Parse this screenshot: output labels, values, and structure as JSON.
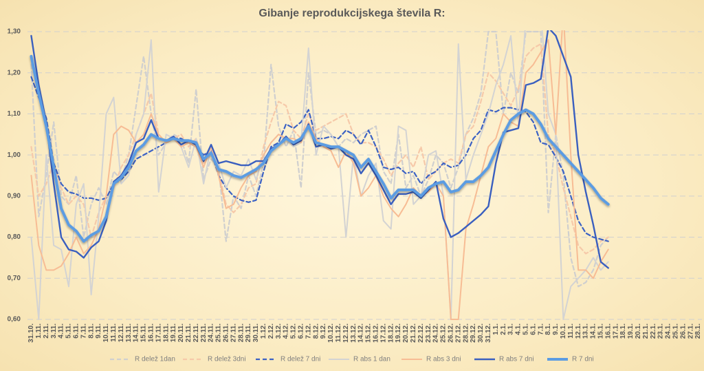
{
  "chart_data": {
    "type": "line",
    "title": "Gibanje reprodukcijskega števila R:",
    "categories": [
      "31.10.",
      "1.11.",
      "2.11.",
      "3.11.",
      "4.11.",
      "5.11.",
      "6.11.",
      "7.11.",
      "8.11.",
      "9.11.",
      "10.11.",
      "11.11.",
      "12.11.",
      "13.11.",
      "14.11.",
      "15.11.",
      "16.11.",
      "17.11.",
      "18.11.",
      "19.11.",
      "20.11.",
      "21.11.",
      "22.11.",
      "23.11.",
      "24.11.",
      "25.11.",
      "26.11.",
      "27.11.",
      "28.11.",
      "29.11.",
      "30.11.",
      "1.12.",
      "2.12.",
      "3.12.",
      "4.12.",
      "5.12.",
      "6.12.",
      "7.12.",
      "8.12.",
      "9.12.",
      "10.12.",
      "11.12.",
      "12.12.",
      "13.12.",
      "14.12.",
      "15.12.",
      "16.12.",
      "17.12.",
      "18.12.",
      "19.12.",
      "20.12.",
      "21.12.",
      "22.12.",
      "23.12.",
      "24.12.",
      "25.12.",
      "26.12.",
      "27.12.",
      "28.12.",
      "29.12.",
      "30.12.",
      "31.12.",
      "1.1.",
      "2.1.",
      "3.1.",
      "4.1.",
      "5.1.",
      "6.1.",
      "7.1.",
      "8.1.",
      "9.1.",
      "10.1.",
      "11.1.",
      "12.1.",
      "13.1.",
      "14.1.",
      "15.1.",
      "16.1.",
      "17.1.",
      "18.1.",
      "19.1.",
      "20.1.",
      "21.1.",
      "22.1.",
      "23.1.",
      "24.1.",
      "25.1.",
      "26.1.",
      "27.1.",
      "28.1."
    ],
    "series": [
      {
        "name": "R delež 1dan",
        "color": "#cfcfcf",
        "style": "dashed",
        "values": [
          1.22,
          0.85,
          0.95,
          1.08,
          0.9,
          0.88,
          0.95,
          0.8,
          0.88,
          0.92,
          0.88,
          0.96,
          0.94,
          1.0,
          1.12,
          1.24,
          1.1,
          1.0,
          1.03,
          1.05,
          1.04,
          0.98,
          1.16,
          0.94,
          0.99,
          0.97,
          0.79,
          0.9,
          0.87,
          0.95,
          0.9,
          0.98,
          1.22,
          1.07,
          1.02,
          1.06,
          0.92,
          1.2,
          1.05,
          1.06,
          1.05,
          1.02,
          1.04,
          1.03,
          1.05,
          1.06,
          1.07,
          0.96,
          0.93,
          1.05,
          0.92,
          0.95,
          0.9,
          0.94,
          1.0,
          0.98,
          0.92,
          0.97,
          1.05,
          1.09,
          1.15,
          1.3,
          1.3,
          1.1,
          1.2,
          1.15,
          1.3,
          1.3,
          1.3,
          0.86,
          1.05,
          0.95,
          0.75,
          0.68,
          0.69,
          0.72,
          0.78,
          0.8,
          null,
          null,
          null,
          null,
          null,
          null,
          null,
          null,
          null,
          null,
          null,
          null
        ]
      },
      {
        "name": "R delež 3dni",
        "color": "#f6c9a9",
        "style": "dashed",
        "values": [
          1.02,
          0.9,
          0.93,
          0.98,
          0.92,
          0.88,
          0.9,
          0.88,
          0.8,
          0.86,
          0.9,
          0.92,
          0.97,
          1.0,
          1.05,
          1.1,
          1.15,
          1.05,
          1.03,
          1.04,
          1.05,
          1.02,
          1.04,
          0.98,
          1.01,
          0.96,
          0.88,
          0.86,
          0.88,
          0.92,
          0.93,
          1.02,
          1.08,
          1.13,
          1.12,
          1.06,
          1.04,
          1.1,
          1.06,
          1.07,
          1.08,
          1.09,
          1.1,
          1.05,
          1.03,
          1.03,
          1.02,
          0.99,
          0.95,
          0.98,
          1.0,
          0.97,
          1.02,
          0.94,
          0.96,
          0.98,
          0.99,
          0.98,
          1.05,
          1.07,
          1.13,
          1.2,
          1.18,
          1.15,
          1.12,
          1.16,
          1.24,
          1.26,
          1.27,
          1.05,
          1.0,
          0.92,
          0.85,
          0.78,
          0.76,
          0.77,
          0.79,
          0.8,
          null,
          null,
          null,
          null,
          null,
          null,
          null,
          null,
          null,
          null,
          null,
          null
        ]
      },
      {
        "name": "R delež 7 dni",
        "color": "#3c62c4",
        "style": "dashed",
        "values": [
          1.19,
          1.14,
          1.09,
          0.98,
          0.93,
          0.91,
          0.905,
          0.895,
          0.895,
          0.89,
          0.895,
          0.93,
          0.94,
          0.96,
          0.99,
          1.0,
          1.01,
          1.02,
          1.03,
          1.04,
          1.04,
          1.03,
          1.02,
          1.0,
          1.01,
          0.95,
          0.92,
          0.9,
          0.89,
          0.885,
          0.89,
          0.96,
          1.02,
          1.03,
          1.075,
          1.065,
          1.08,
          1.11,
          1.04,
          1.04,
          1.045,
          1.04,
          1.06,
          1.05,
          1.025,
          1.06,
          1.02,
          0.97,
          0.965,
          0.97,
          0.955,
          0.96,
          0.93,
          0.95,
          0.96,
          0.98,
          0.97,
          0.975,
          1.0,
          1.04,
          1.06,
          1.11,
          1.105,
          1.115,
          1.115,
          1.11,
          1.105,
          1.08,
          1.03,
          1.025,
          0.995,
          0.96,
          0.9,
          0.84,
          0.81,
          0.8,
          0.795,
          0.79,
          null,
          null,
          null,
          null,
          null,
          null,
          null,
          null,
          null,
          null,
          null,
          null
        ]
      },
      {
        "name": "R abs 1 dan",
        "color": "#d3d3d3",
        "style": "solid",
        "values": [
          0.8,
          0.6,
          1.0,
          0.78,
          0.77,
          0.68,
          0.88,
          0.93,
          0.66,
          0.85,
          1.1,
          1.14,
          0.93,
          0.95,
          1.05,
          1.1,
          1.28,
          0.91,
          1.05,
          1.04,
          1.02,
          0.97,
          1.04,
          0.93,
          1.02,
          0.98,
          0.92,
          0.96,
          0.95,
          0.99,
          0.94,
          1.0,
          1.03,
          1.05,
          1.04,
          1.02,
          1.03,
          1.26,
          1.0,
          1.07,
          1.05,
          1.02,
          0.8,
          1.0,
          0.9,
          0.95,
          0.98,
          0.84,
          0.82,
          1.07,
          1.06,
          0.88,
          0.9,
          1.0,
          1.01,
          0.9,
          0.6,
          1.27,
          0.94,
          1.0,
          1.05,
          1.1,
          1.17,
          1.22,
          1.29,
          1.08,
          1.33,
          1.32,
          1.35,
          1.1,
          1.05,
          0.6,
          0.68,
          0.7,
          0.72,
          0.75,
          0.72,
          0.74,
          null,
          null,
          null,
          null,
          null,
          null,
          null,
          null,
          null,
          null,
          null,
          null
        ]
      },
      {
        "name": "R abs 3 dni",
        "color": "#f7bc94",
        "style": "solid",
        "values": [
          0.95,
          0.78,
          0.72,
          0.72,
          0.73,
          0.76,
          0.8,
          0.76,
          0.78,
          0.82,
          0.9,
          1.05,
          1.07,
          1.06,
          1.03,
          1.05,
          1.1,
          1.05,
          1.03,
          1.04,
          1.02,
          1.03,
          1.02,
          0.97,
          1.02,
          0.95,
          0.87,
          0.88,
          0.92,
          0.95,
          0.96,
          1.0,
          1.03,
          1.05,
          1.04,
          1.04,
          1.03,
          1.08,
          1.04,
          1.02,
          1.01,
          0.97,
          1.01,
          0.98,
          0.9,
          0.92,
          0.95,
          0.9,
          0.87,
          0.85,
          0.88,
          0.92,
          0.9,
          0.91,
          0.93,
          0.9,
          0.6,
          0.6,
          0.82,
          0.88,
          0.95,
          1.02,
          1.04,
          1.1,
          1.08,
          1.07,
          1.2,
          1.22,
          1.25,
          1.28,
          1.05,
          1.35,
          1.0,
          0.72,
          0.72,
          0.7,
          0.74,
          0.77,
          null,
          null,
          null,
          null,
          null,
          null,
          null,
          null,
          null,
          null,
          null,
          null
        ]
      },
      {
        "name": "R abs 7 dni",
        "color": "#3a5fbf",
        "style": "solid",
        "values": [
          1.29,
          1.17,
          1.08,
          0.93,
          0.8,
          0.77,
          0.765,
          0.75,
          0.775,
          0.79,
          0.84,
          0.935,
          0.95,
          0.98,
          1.03,
          1.04,
          1.085,
          1.04,
          1.035,
          1.045,
          1.025,
          1.035,
          1.025,
          0.985,
          1.025,
          0.98,
          0.985,
          0.98,
          0.975,
          0.975,
          0.985,
          0.985,
          1.015,
          1.025,
          1.045,
          1.025,
          1.035,
          1.075,
          1.02,
          1.025,
          1.015,
          1.02,
          1.0,
          0.99,
          0.955,
          0.98,
          0.95,
          0.915,
          0.88,
          0.905,
          0.905,
          0.91,
          0.895,
          0.915,
          0.935,
          0.845,
          0.8,
          0.81,
          0.825,
          0.84,
          0.855,
          0.875,
          0.98,
          1.055,
          1.06,
          1.065,
          1.17,
          1.175,
          1.185,
          1.31,
          1.29,
          1.24,
          1.19,
          1.0,
          0.91,
          0.83,
          0.74,
          0.725,
          null,
          null,
          null,
          null,
          null,
          null,
          null,
          null,
          null,
          null,
          null,
          null
        ]
      },
      {
        "name": "R 7 dni",
        "color": "#5c9ce2",
        "style": "bold",
        "values": [
          1.24,
          1.15,
          1.07,
          0.97,
          0.87,
          0.83,
          0.815,
          0.79,
          0.805,
          0.815,
          0.85,
          0.93,
          0.945,
          0.97,
          1.01,
          1.025,
          1.05,
          1.04,
          1.035,
          1.04,
          1.035,
          1.035,
          1.03,
          0.99,
          1.005,
          0.965,
          0.96,
          0.95,
          0.945,
          0.955,
          0.965,
          0.98,
          1.01,
          1.025,
          1.04,
          1.03,
          1.04,
          1.07,
          1.03,
          1.025,
          1.02,
          1.02,
          1.01,
          1.0,
          0.97,
          0.99,
          0.96,
          0.93,
          0.895,
          0.915,
          0.915,
          0.915,
          0.9,
          0.92,
          0.93,
          0.935,
          0.91,
          0.915,
          0.935,
          0.935,
          0.95,
          0.97,
          1.01,
          1.05,
          1.085,
          1.1,
          1.11,
          1.1,
          1.075,
          1.04,
          1.02,
          1.0,
          0.98,
          0.96,
          0.94,
          0.92,
          0.895,
          0.88,
          null,
          null,
          null,
          null,
          null,
          null,
          null,
          null,
          null,
          null,
          null,
          null
        ]
      }
    ],
    "ylim": [
      0.6,
      1.3
    ],
    "yticks": [
      {
        "value": 0.6,
        "label": "0,60"
      },
      {
        "value": 0.7,
        "label": "0,70"
      },
      {
        "value": 0.8,
        "label": "0,80"
      },
      {
        "value": 0.9,
        "label": "0,90"
      },
      {
        "value": 1.0,
        "label": "1,00"
      },
      {
        "value": 1.1,
        "label": "1,10"
      },
      {
        "value": 1.2,
        "label": "1,20"
      },
      {
        "value": 1.3,
        "label": "1,30"
      }
    ],
    "grid": true,
    "legend": "bottom"
  }
}
